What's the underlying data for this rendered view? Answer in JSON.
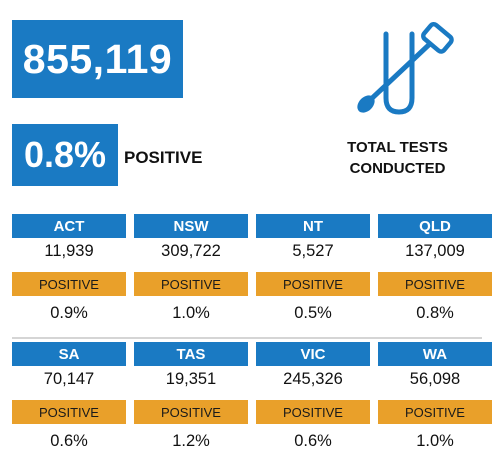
{
  "summary": {
    "total_tests": "855,119",
    "positive_rate": "0.8%",
    "positive_label": "POSITIVE",
    "total_tests_label_line1": "TOTAL TESTS",
    "total_tests_label_line2": "CONDUCTED",
    "icon": "test-tube-swab-icon"
  },
  "states": [
    {
      "name": "ACT",
      "tests": "11,939",
      "positive_label": "POSITIVE",
      "positive_rate": "0.9%"
    },
    {
      "name": "NSW",
      "tests": "309,722",
      "positive_label": "POSITIVE",
      "positive_rate": "1.0%"
    },
    {
      "name": "NT",
      "tests": "5,527",
      "positive_label": "POSITIVE",
      "positive_rate": "0.5%"
    },
    {
      "name": "QLD",
      "tests": "137,009",
      "positive_label": "POSITIVE",
      "positive_rate": "0.8%"
    },
    {
      "name": "SA",
      "tests": "70,147",
      "positive_label": "POSITIVE",
      "positive_rate": "0.6%"
    },
    {
      "name": "TAS",
      "tests": "19,351",
      "positive_label": "POSITIVE",
      "positive_rate": "1.2%"
    },
    {
      "name": "VIC",
      "tests": "245,326",
      "positive_label": "POSITIVE",
      "positive_rate": "0.6%"
    },
    {
      "name": "WA",
      "tests": "56,098",
      "positive_label": "POSITIVE",
      "positive_rate": "1.0%"
    }
  ],
  "colors": {
    "blue": "#1a7ac3",
    "orange": "#e9a02a"
  }
}
